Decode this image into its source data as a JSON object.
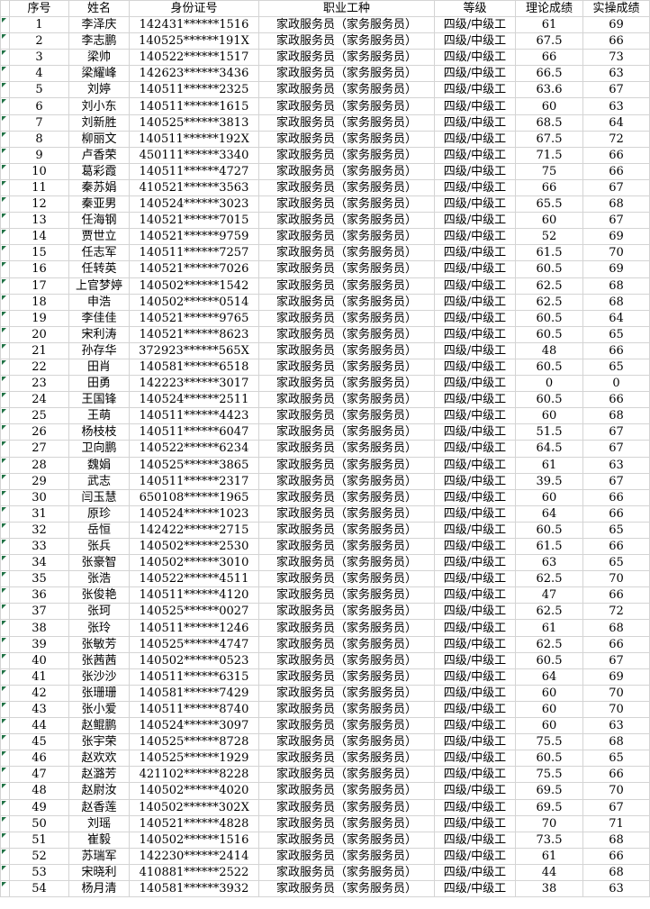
{
  "table": {
    "headers": [
      "序号",
      "姓名",
      "身份证号",
      "职业工种",
      "等级",
      "理论成绩",
      "实操成绩"
    ],
    "rows": [
      [
        "1",
        "李泽庆",
        "142431******1516",
        "家政服务员（家务服务员）",
        "四级/中级工",
        "61",
        "69"
      ],
      [
        "2",
        "李志鹏",
        "140525******191X",
        "家政服务员（家务服务员）",
        "四级/中级工",
        "67.5",
        "66"
      ],
      [
        "3",
        "梁帅",
        "140522******1517",
        "家政服务员（家务服务员）",
        "四级/中级工",
        "66",
        "73"
      ],
      [
        "4",
        "梁耀峰",
        "142623******3436",
        "家政服务员（家务服务员）",
        "四级/中级工",
        "66.5",
        "63"
      ],
      [
        "5",
        "刘婷",
        "140511******2325",
        "家政服务员（家务服务员）",
        "四级/中级工",
        "63.6",
        "67"
      ],
      [
        "6",
        "刘小东",
        "140511******1615",
        "家政服务员（家务服务员）",
        "四级/中级工",
        "60",
        "63"
      ],
      [
        "7",
        "刘新胜",
        "140525******3813",
        "家政服务员（家务服务员）",
        "四级/中级工",
        "68.5",
        "64"
      ],
      [
        "8",
        "柳丽文",
        "140511******192X",
        "家政服务员（家务服务员）",
        "四级/中级工",
        "67.5",
        "72"
      ],
      [
        "9",
        "卢香荣",
        "450111******3340",
        "家政服务员（家务服务员）",
        "四级/中级工",
        "71.5",
        "66"
      ],
      [
        "10",
        "葛彩霞",
        "140511******4727",
        "家政服务员（家务服务员）",
        "四级/中级工",
        "75",
        "66"
      ],
      [
        "11",
        "秦苏娟",
        "410521******3563",
        "家政服务员（家务服务员）",
        "四级/中级工",
        "66",
        "67"
      ],
      [
        "12",
        "秦亚男",
        "140524******3023",
        "家政服务员（家务服务员）",
        "四级/中级工",
        "65.5",
        "68"
      ],
      [
        "13",
        "任海钢",
        "140521******7015",
        "家政服务员（家务服务员）",
        "四级/中级工",
        "60",
        "67"
      ],
      [
        "14",
        "贾世立",
        "140521******9759",
        "家政服务员（家务服务员）",
        "四级/中级工",
        "52",
        "69"
      ],
      [
        "15",
        "任志军",
        "140511******7257",
        "家政服务员（家务服务员）",
        "四级/中级工",
        "61.5",
        "70"
      ],
      [
        "16",
        "任转英",
        "140521******7026",
        "家政服务员（家务服务员）",
        "四级/中级工",
        "60.5",
        "69"
      ],
      [
        "17",
        "上官梦婷",
        "140502******1542",
        "家政服务员（家务服务员）",
        "四级/中级工",
        "62.5",
        "68"
      ],
      [
        "18",
        "申浩",
        "140502******0514",
        "家政服务员（家务服务员）",
        "四级/中级工",
        "62.5",
        "68"
      ],
      [
        "19",
        "李佳佳",
        "140521******9765",
        "家政服务员（家务服务员）",
        "四级/中级工",
        "60.5",
        "64"
      ],
      [
        "20",
        "宋利涛",
        "140521******8623",
        "家政服务员（家务服务员）",
        "四级/中级工",
        "60.5",
        "65"
      ],
      [
        "21",
        "孙存华",
        "372923******565X",
        "家政服务员（家务服务员）",
        "四级/中级工",
        "48",
        "66"
      ],
      [
        "22",
        "田肖",
        "140581******6518",
        "家政服务员（家务服务员）",
        "四级/中级工",
        "60.5",
        "65"
      ],
      [
        "23",
        "田勇",
        "142223******3017",
        "家政服务员（家务服务员）",
        "四级/中级工",
        "0",
        "0"
      ],
      [
        "24",
        "王国锋",
        "140524******2511",
        "家政服务员（家务服务员）",
        "四级/中级工",
        "60.5",
        "66"
      ],
      [
        "25",
        "王萌",
        "140511******4423",
        "家政服务员（家务服务员）",
        "四级/中级工",
        "60",
        "68"
      ],
      [
        "26",
        "杨枝枝",
        "140511******6047",
        "家政服务员（家务服务员）",
        "四级/中级工",
        "51.5",
        "67"
      ],
      [
        "27",
        "卫向鹏",
        "140522******6234",
        "家政服务员（家务服务员）",
        "四级/中级工",
        "64.5",
        "67"
      ],
      [
        "28",
        "魏娟",
        "140525******3865",
        "家政服务员（家务服务员）",
        "四级/中级工",
        "61",
        "63"
      ],
      [
        "29",
        "武志",
        "140511******2317",
        "家政服务员（家务服务员）",
        "四级/中级工",
        "39.5",
        "67"
      ],
      [
        "30",
        "闫玉慧",
        "650108******1965",
        "家政服务员（家务服务员）",
        "四级/中级工",
        "60",
        "66"
      ],
      [
        "31",
        "原珍",
        "140524******1023",
        "家政服务员（家务服务员）",
        "四级/中级工",
        "64",
        "66"
      ],
      [
        "32",
        "岳恒",
        "142422******2715",
        "家政服务员（家务服务员）",
        "四级/中级工",
        "60.5",
        "65"
      ],
      [
        "33",
        "张兵",
        "140502******2530",
        "家政服务员（家务服务员）",
        "四级/中级工",
        "61.5",
        "66"
      ],
      [
        "34",
        "张豪智",
        "140502******3010",
        "家政服务员（家务服务员）",
        "四级/中级工",
        "63",
        "65"
      ],
      [
        "35",
        "张浩",
        "140522******4511",
        "家政服务员（家务服务员）",
        "四级/中级工",
        "62.5",
        "70"
      ],
      [
        "36",
        "张俊艳",
        "140511******4120",
        "家政服务员（家务服务员）",
        "四级/中级工",
        "47",
        "66"
      ],
      [
        "37",
        "张珂",
        "140525******0027",
        "家政服务员（家务服务员）",
        "四级/中级工",
        "62.5",
        "72"
      ],
      [
        "38",
        "张玲",
        "140511******1246",
        "家政服务员（家务服务员）",
        "四级/中级工",
        "61",
        "68"
      ],
      [
        "39",
        "张敏芳",
        "140525******4747",
        "家政服务员（家务服务员）",
        "四级/中级工",
        "62.5",
        "66"
      ],
      [
        "40",
        "张茜茜",
        "140502******0523",
        "家政服务员（家务服务员）",
        "四级/中级工",
        "60.5",
        "67"
      ],
      [
        "41",
        "张沙沙",
        "140511******6315",
        "家政服务员（家务服务员）",
        "四级/中级工",
        "64",
        "69"
      ],
      [
        "42",
        "张珊珊",
        "140581******7429",
        "家政服务员（家务服务员）",
        "四级/中级工",
        "60",
        "70"
      ],
      [
        "43",
        "张小爱",
        "140511******8740",
        "家政服务员（家务服务员）",
        "四级/中级工",
        "60",
        "70"
      ],
      [
        "44",
        "赵鲲鹏",
        "140524******3097",
        "家政服务员（家务服务员）",
        "四级/中级工",
        "60",
        "63"
      ],
      [
        "45",
        "张宇荣",
        "140525******8728",
        "家政服务员（家务服务员）",
        "四级/中级工",
        "75.5",
        "68"
      ],
      [
        "46",
        "赵欢欢",
        "140525******1929",
        "家政服务员（家务服务员）",
        "四级/中级工",
        "60.5",
        "65"
      ],
      [
        "47",
        "赵潞芳",
        "421102******8228",
        "家政服务员（家务服务员）",
        "四级/中级工",
        "75.5",
        "66"
      ],
      [
        "48",
        "赵尉汝",
        "140502******4020",
        "家政服务员（家务服务员）",
        "四级/中级工",
        "69.5",
        "70"
      ],
      [
        "49",
        "赵香莲",
        "140502******302X",
        "家政服务员（家务服务员）",
        "四级/中级工",
        "69.5",
        "67"
      ],
      [
        "50",
        "刘瑶",
        "140521******4828",
        "家政服务员（家务服务员）",
        "四级/中级工",
        "70",
        "71"
      ],
      [
        "51",
        "崔毅",
        "140502******1516",
        "家政服务员（家务服务员）",
        "四级/中级工",
        "73.5",
        "68"
      ],
      [
        "52",
        "苏瑞军",
        "142230******2414",
        "家政服务员（家务服务员）",
        "四级/中级工",
        "61",
        "66"
      ],
      [
        "53",
        "宋晓利",
        "410881******2522",
        "家政服务员（家务服务员）",
        "四级/中级工",
        "44",
        "68"
      ],
      [
        "54",
        "杨月清",
        "140581******3932",
        "家政服务员（家务服务员）",
        "四级/中级工",
        "38",
        "63"
      ]
    ]
  },
  "icons": {
    "error_indicator": "error-indicator-triangle"
  },
  "colors": {
    "gridline": "#d4d4d4",
    "error_indicator_green": "#217346",
    "text": "#000000",
    "background": "#ffffff"
  }
}
